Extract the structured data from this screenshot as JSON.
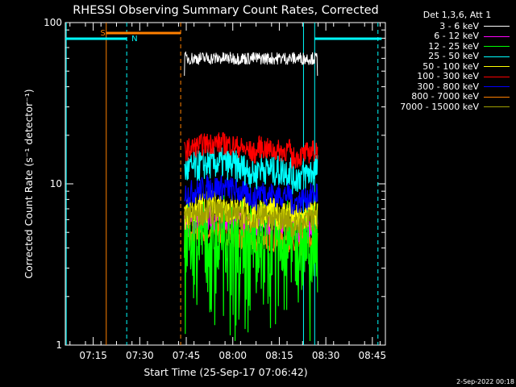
{
  "chart_data": {
    "type": "line",
    "title": "RHESSI Observing Summary Count Rates, Corrected",
    "xlabel": "Start Time (25-Sep-17 07:06:42)",
    "ylabel": "Corrected Count Rate (s⁻¹ detector⁻¹)",
    "yscale": "log",
    "ylim": [
      1,
      100
    ],
    "xlim_minutes": [
      7.1,
      8.82
    ],
    "y_tick_labels": [
      "1",
      "10",
      "100"
    ],
    "x_tick_labels": [
      "07:15",
      "07:30",
      "07:45",
      "08:00",
      "08:15",
      "08:30",
      "08:45"
    ],
    "x_tick_hours": [
      7.25,
      7.5,
      7.75,
      8.0,
      8.25,
      8.5,
      8.75
    ],
    "data_interval_hours": [
      7.74,
      8.455
    ],
    "series": [
      {
        "name": "3 - 6 keV",
        "color": "#ffffff",
        "level": 60,
        "spread": 0.04
      },
      {
        "name": "6 - 12 keV",
        "color": "#ff00ff",
        "level": 5.5,
        "spread": 0.08
      },
      {
        "name": "12 - 25 keV",
        "color": "#00ff00",
        "level": 4.5,
        "spread": 0.25
      },
      {
        "name": "25 - 50 keV",
        "color": "#00ffff",
        "level": 12,
        "spread": 0.1
      },
      {
        "name": "50 - 100 keV",
        "color": "#ffff00",
        "level": 6.5,
        "spread": 0.1
      },
      {
        "name": "100 - 300 keV",
        "color": "#ff0000",
        "level": 16,
        "spread": 0.07
      },
      {
        "name": "300 - 800 keV",
        "color": "#0000ff",
        "level": 8.5,
        "spread": 0.08
      },
      {
        "name": "800 - 7000 keV",
        "color": "#ff8000",
        "level": 4.5,
        "spread": 0.08
      },
      {
        "name": "7000 - 15000 keV",
        "color": "#a0a000",
        "level": 6.0,
        "spread": 0.08
      }
    ],
    "legend_header": "Det 1,3,6, Att 1",
    "annotations": {
      "saa_label": "S",
      "night_label": "N",
      "saa_bar_hours": [
        7.32,
        7.72
      ],
      "night_bar_hours": [
        [
          7.1,
          7.43
        ],
        [
          8.44,
          8.8
        ]
      ]
    }
  },
  "footer": {
    "timestamp": "2-Sep-2022 00:18"
  },
  "colors": {
    "axes": "#ffffff",
    "saa": "#ff8000",
    "night": "#00ffff"
  }
}
